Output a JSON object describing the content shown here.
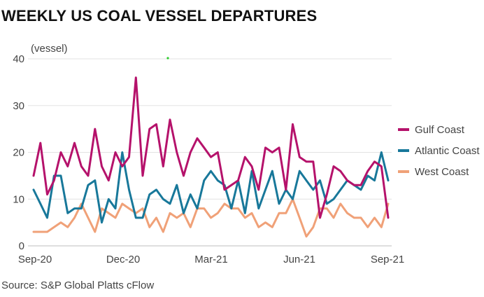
{
  "title": "WEEKLY US COAL VESSEL DEPARTURES",
  "source": "Source: S&P Global Platts cFlow",
  "chart_data": {
    "type": "line",
    "ylabel": "(vessel)",
    "ylim": [
      0,
      40
    ],
    "yticks": [
      "0",
      "10",
      "20",
      "30",
      "40"
    ],
    "xticks": [
      "Sep-20",
      "Dec-20",
      "Mar-21",
      "Jun-21",
      "Sep-21"
    ],
    "grid": true,
    "legend_position": "right",
    "series": [
      {
        "name": "Gulf Coast",
        "color": "#b5126b",
        "values": [
          15,
          22,
          11,
          14,
          20,
          17,
          22,
          17,
          15,
          25,
          17,
          14,
          20,
          17,
          19,
          36,
          15,
          25,
          26,
          17,
          27,
          20,
          15,
          20,
          23,
          21,
          19,
          20,
          12,
          13,
          14,
          19,
          17,
          12,
          21,
          20,
          21,
          12,
          26,
          19,
          18,
          18,
          6,
          11,
          17,
          16,
          14,
          13,
          13,
          16,
          18,
          17,
          6
        ]
      },
      {
        "name": "Atlantic Coast",
        "color": "#18789a",
        "values": [
          12,
          9,
          6,
          15,
          15,
          7,
          8,
          8,
          13,
          14,
          5,
          10,
          8,
          20,
          12,
          6,
          6,
          11,
          12,
          10,
          9,
          13,
          7,
          11,
          8,
          14,
          16,
          14,
          13,
          8,
          14,
          7,
          16,
          8,
          12,
          16,
          9,
          12,
          10,
          16,
          14,
          12,
          14,
          9,
          10,
          12,
          14,
          13,
          12,
          15,
          14,
          20,
          14
        ]
      },
      {
        "name": "West Coast",
        "color": "#f0a178",
        "values": [
          3,
          3,
          3,
          4,
          5,
          4,
          6,
          9,
          6,
          3,
          8,
          7,
          6,
          9,
          8,
          7,
          8,
          4,
          6,
          3,
          7,
          6,
          7,
          4,
          8,
          8,
          6,
          7,
          9,
          8,
          8,
          6,
          7,
          4,
          5,
          4,
          7,
          7,
          10,
          6,
          2,
          4,
          8,
          8,
          6,
          9,
          7,
          6,
          6,
          4,
          6,
          4,
          9
        ]
      }
    ]
  }
}
